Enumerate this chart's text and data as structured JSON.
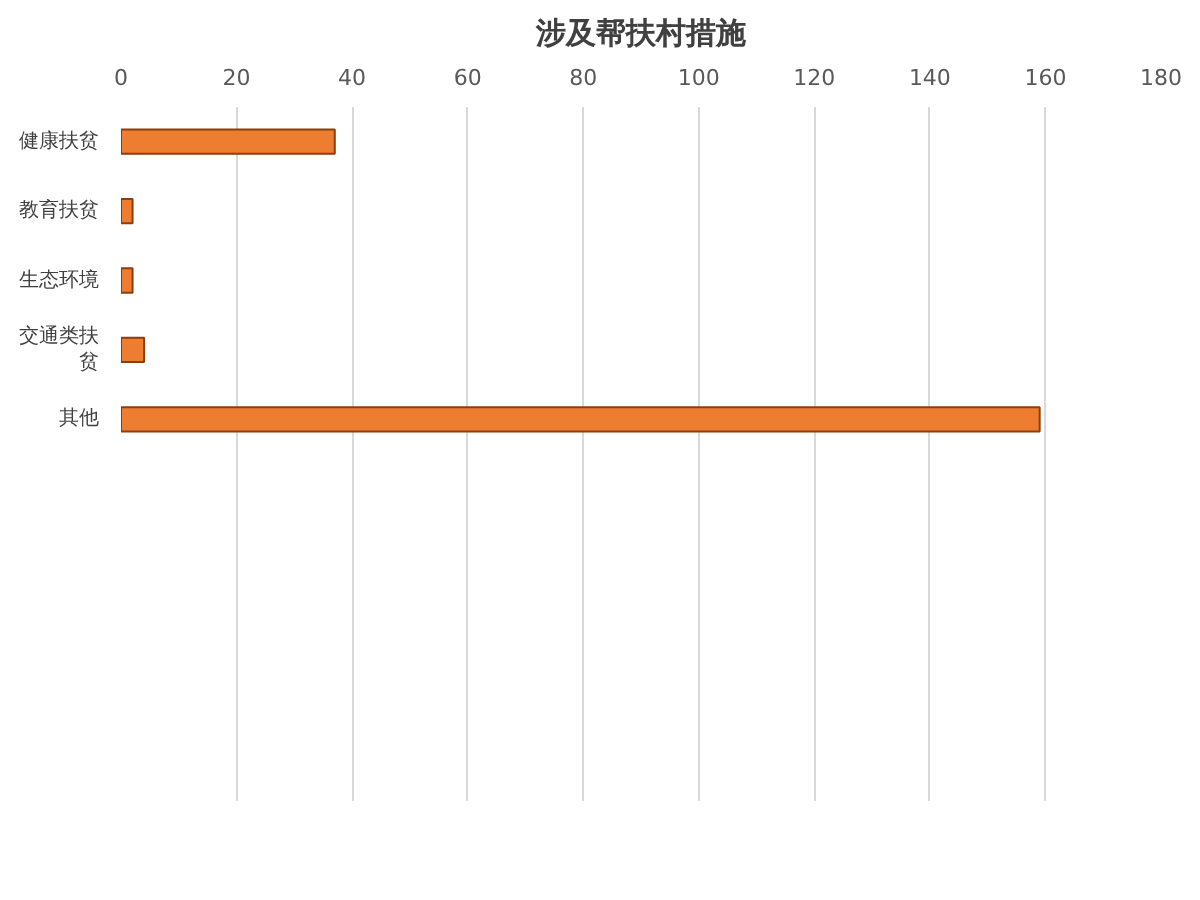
{
  "chart_data": {
    "type": "bar",
    "orientation": "horizontal",
    "title": "涉及帮扶村措施",
    "categories": [
      "健康扶贫",
      "教育扶贫",
      "生态环境",
      "交通类扶贫",
      "其他",
      null,
      null,
      null,
      null,
      null
    ],
    "values": [
      37,
      2,
      2,
      4,
      159,
      null,
      null,
      null,
      null,
      null
    ],
    "color": "#ed7d31",
    "xlim": [
      0,
      180
    ],
    "xticks": [
      0,
      20,
      40,
      60,
      80,
      100,
      120,
      140,
      160,
      180
    ],
    "grid": "x"
  }
}
